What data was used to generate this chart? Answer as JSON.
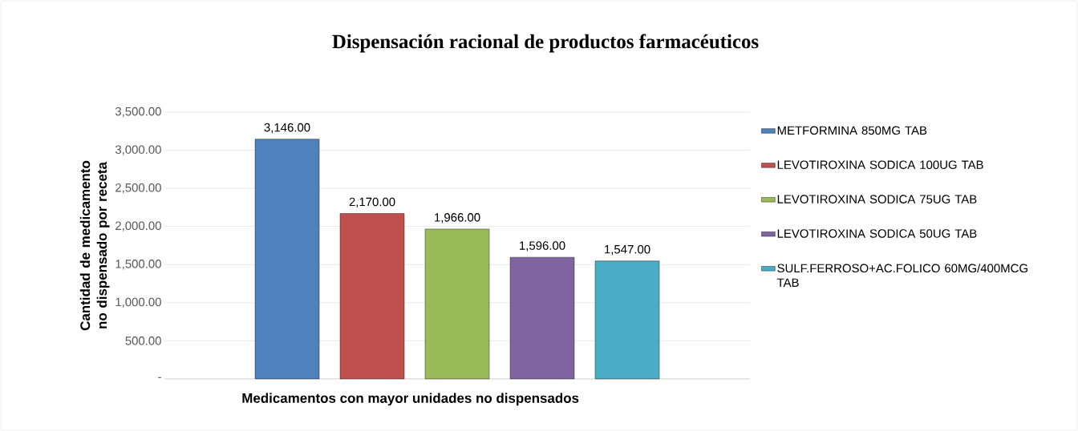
{
  "chart_data": {
    "type": "bar",
    "title": "Dispensación racional de productos farmacéuticos",
    "xlabel": "Medicamentos con mayor unidades no dispensados",
    "ylabel": "Cantidad de medicamento no dispensado por receta",
    "categories": [
      null
    ],
    "series": [
      {
        "name": "METFORMINA 850MG TAB",
        "color": "#4f81bd",
        "values": [
          3146
        ],
        "value_labels": [
          "3,146.00"
        ]
      },
      {
        "name": "LEVOTIROXINA SODICA 100UG TAB",
        "color": "#c0504d",
        "values": [
          2170
        ],
        "value_labels": [
          "2,170.00"
        ]
      },
      {
        "name": "LEVOTIROXINA SODICA 75UG TAB",
        "color": "#9bbb59",
        "values": [
          1966
        ],
        "value_labels": [
          "1,966.00"
        ]
      },
      {
        "name": "LEVOTIROXINA SODICA 50UG TAB",
        "color": "#8064a2",
        "values": [
          1596
        ],
        "value_labels": [
          "1,596.00"
        ]
      },
      {
        "name": "SULF.FERROSO+AC.FOLICO 60MG/400MCG TAB",
        "color": "#4bacc6",
        "values": [
          1547
        ],
        "value_labels": [
          "1,547.00"
        ]
      }
    ],
    "ylim": [
      0,
      3500
    ],
    "yticks": [
      {
        "value": 0,
        "label": "-"
      },
      {
        "value": 500,
        "label": "500.00"
      },
      {
        "value": 1000,
        "label": "1,000.00"
      },
      {
        "value": 1500,
        "label": "1,500.00"
      },
      {
        "value": 2000,
        "label": "2,000.00"
      },
      {
        "value": 2500,
        "label": "2,500.00"
      },
      {
        "value": 3000,
        "label": "3,000.00"
      },
      {
        "value": 3500,
        "label": "3,500.00"
      }
    ],
    "grid": "y",
    "legend": "right"
  }
}
